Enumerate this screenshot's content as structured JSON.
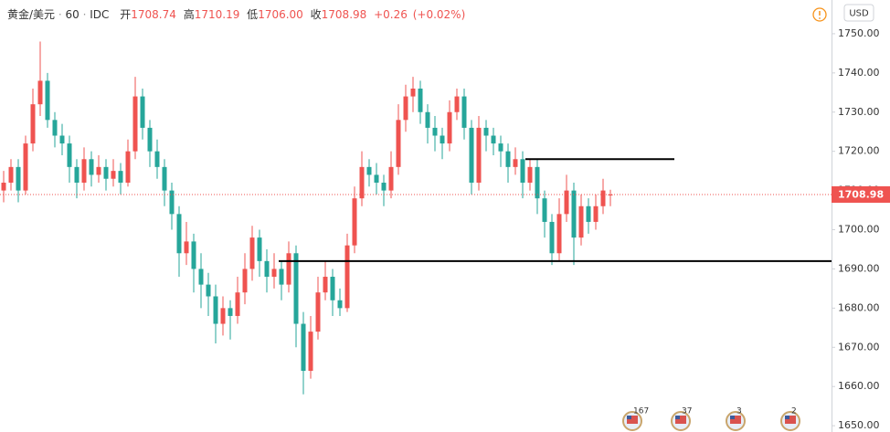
{
  "chart_data": {
    "type": "candlestick",
    "header": {
      "symbol": "黄金/美元",
      "interval": "60",
      "source": "IDC",
      "open_label": "开",
      "open": "1708.74",
      "high_label": "高",
      "high": "1710.19",
      "low_label": "低",
      "low": "1706.00",
      "close_label": "收",
      "close": "1708.98",
      "change": "+0.26",
      "change_pct": "(+0.02%)"
    },
    "currency": "USD",
    "up_color": "#ef5350",
    "down_color": "#26a69a",
    "ylim": [
      1648.4,
      1758.6
    ],
    "yticks": [
      {
        "value": 1650,
        "label": "1650.00"
      },
      {
        "value": 1660,
        "label": "1660.00"
      },
      {
        "value": 1670,
        "label": "1670.00"
      },
      {
        "value": 1680,
        "label": "1680.00"
      },
      {
        "value": 1690,
        "label": "1690.00"
      },
      {
        "value": 1700,
        "label": "1700.00"
      },
      {
        "value": 1710,
        "label": "1710.00"
      },
      {
        "value": 1720,
        "label": "1720.00"
      },
      {
        "value": 1730,
        "label": "1730.00"
      },
      {
        "value": 1740,
        "label": "1740.00"
      },
      {
        "value": 1750,
        "label": "1750.00"
      }
    ],
    "levels": [
      1718,
      1692
    ],
    "events": [
      "167",
      "37",
      "3",
      "2"
    ],
    "candles": [
      [
        1710,
        1715,
        1707,
        1712
      ],
      [
        1712,
        1718,
        1710,
        1716
      ],
      [
        1716,
        1718,
        1707,
        1710
      ],
      [
        1710,
        1724,
        1709,
        1722
      ],
      [
        1722,
        1736,
        1720,
        1732
      ],
      [
        1732,
        1748,
        1729,
        1738
      ],
      [
        1738,
        1740,
        1726,
        1728
      ],
      [
        1728,
        1730,
        1721,
        1724
      ],
      [
        1724,
        1727,
        1719,
        1722
      ],
      [
        1722,
        1724,
        1712,
        1716
      ],
      [
        1716,
        1718,
        1708,
        1712
      ],
      [
        1712,
        1721,
        1710,
        1718
      ],
      [
        1718,
        1720,
        1711,
        1714
      ],
      [
        1714,
        1719,
        1712,
        1716
      ],
      [
        1716,
        1718,
        1710,
        1713
      ],
      [
        1713,
        1718,
        1711,
        1715
      ],
      [
        1715,
        1717,
        1709,
        1712
      ],
      [
        1712,
        1723,
        1711,
        1720
      ],
      [
        1720,
        1739,
        1718,
        1734
      ],
      [
        1734,
        1736,
        1723,
        1726
      ],
      [
        1726,
        1728,
        1716,
        1720
      ],
      [
        1720,
        1723,
        1713,
        1716
      ],
      [
        1716,
        1718,
        1706,
        1710
      ],
      [
        1710,
        1712,
        1700,
        1704
      ],
      [
        1704,
        1706,
        1688,
        1694
      ],
      [
        1694,
        1702,
        1691,
        1697
      ],
      [
        1697,
        1699,
        1684,
        1690
      ],
      [
        1690,
        1694,
        1680,
        1686
      ],
      [
        1686,
        1689,
        1678,
        1683
      ],
      [
        1683,
        1686,
        1671,
        1676
      ],
      [
        1676,
        1683,
        1673,
        1680
      ],
      [
        1680,
        1682,
        1672,
        1678
      ],
      [
        1678,
        1688,
        1676,
        1684
      ],
      [
        1684,
        1694,
        1681,
        1690
      ],
      [
        1690,
        1701,
        1687,
        1698
      ],
      [
        1698,
        1700,
        1688,
        1692
      ],
      [
        1692,
        1695,
        1684,
        1688
      ],
      [
        1688,
        1694,
        1685,
        1690
      ],
      [
        1690,
        1692,
        1682,
        1686
      ],
      [
        1686,
        1697,
        1684,
        1694
      ],
      [
        1694,
        1696,
        1670,
        1676
      ],
      [
        1676,
        1679,
        1658,
        1664
      ],
      [
        1664,
        1678,
        1662,
        1674
      ],
      [
        1674,
        1688,
        1672,
        1684
      ],
      [
        1684,
        1692,
        1682,
        1688
      ],
      [
        1688,
        1690,
        1678,
        1682
      ],
      [
        1682,
        1685,
        1678,
        1680
      ],
      [
        1680,
        1699,
        1679,
        1696
      ],
      [
        1696,
        1711,
        1694,
        1708
      ],
      [
        1708,
        1720,
        1706,
        1716
      ],
      [
        1716,
        1718,
        1711,
        1714
      ],
      [
        1714,
        1717,
        1709,
        1712
      ],
      [
        1712,
        1714,
        1706,
        1710
      ],
      [
        1710,
        1720,
        1708,
        1716
      ],
      [
        1716,
        1732,
        1714,
        1728
      ],
      [
        1728,
        1737,
        1725,
        1734
      ],
      [
        1734,
        1739,
        1730,
        1736
      ],
      [
        1736,
        1738,
        1727,
        1730
      ],
      [
        1730,
        1732,
        1722,
        1726
      ],
      [
        1726,
        1729,
        1720,
        1724
      ],
      [
        1724,
        1726,
        1718,
        1722
      ],
      [
        1722,
        1733,
        1720,
        1730
      ],
      [
        1730,
        1736,
        1728,
        1734
      ],
      [
        1734,
        1736,
        1723,
        1726
      ],
      [
        1726,
        1728,
        1709,
        1712
      ],
      [
        1712,
        1729,
        1710,
        1726
      ],
      [
        1726,
        1728,
        1720,
        1724
      ],
      [
        1724,
        1726,
        1719,
        1722
      ],
      [
        1722,
        1724,
        1716,
        1720
      ],
      [
        1720,
        1722,
        1712,
        1716
      ],
      [
        1716,
        1721,
        1714,
        1718
      ],
      [
        1718,
        1720,
        1708,
        1712
      ],
      [
        1712,
        1718,
        1710,
        1716
      ],
      [
        1716,
        1718,
        1704,
        1708
      ],
      [
        1708,
        1710,
        1698,
        1702
      ],
      [
        1702,
        1704,
        1691,
        1694
      ],
      [
        1694,
        1708,
        1692,
        1704
      ],
      [
        1704,
        1714,
        1702,
        1710
      ],
      [
        1710,
        1712,
        1691,
        1698
      ],
      [
        1698,
        1709,
        1696,
        1706
      ],
      [
        1706,
        1708,
        1699,
        1702
      ],
      [
        1702,
        1709,
        1700,
        1706
      ],
      [
        1706,
        1713,
        1704,
        1710
      ],
      [
        1708.74,
        1710.19,
        1706,
        1708.98
      ]
    ]
  }
}
